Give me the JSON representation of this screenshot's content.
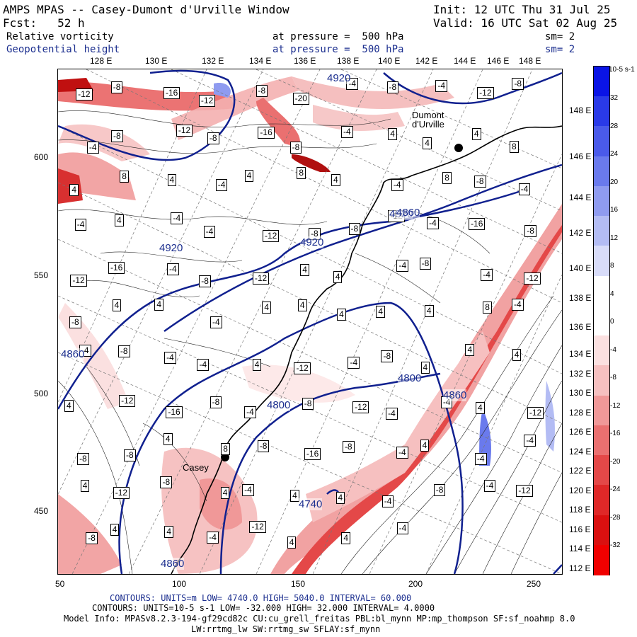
{
  "header": {
    "title_left": "AMPS MPAS -- Casey-Dumont d'Urville Window",
    "init": "Init: 12 UTC Thu 31 Jul 25",
    "fcst": "Fcst:   52 h",
    "valid": "Valid: 16 UTC Sat 02 Aug 25",
    "field1_name": "Relative vorticity",
    "field1_level": "at pressure =  500 hPa",
    "field1_sm": "sm= 2",
    "field2_name": "Geopotential height",
    "field2_level": "at pressure =  500 hPa",
    "field2_sm": "sm= 2"
  },
  "top_lon_labels": [
    "128 E",
    "130 E",
    "132 E",
    "134 E",
    "136 E",
    "138 E",
    "140 E",
    "142 E",
    "144 E",
    "146 E",
    "148 E"
  ],
  "right_lat_labels": [
    "148 E",
    "146 E",
    "144 E",
    "142 E",
    "140 E",
    "138 E",
    "136 E",
    "134 E",
    "132 E",
    "130 E",
    "128 E",
    "126 E",
    "124 E",
    "122 E",
    "120 E",
    "118 E",
    "116 E",
    "114 E",
    "112 E"
  ],
  "y_axis_labels": [
    "600",
    "550",
    "500",
    "450"
  ],
  "x_axis_labels": [
    "50",
    "100",
    "150",
    "200",
    "250"
  ],
  "colorbar": {
    "unit_label": "10-5 s-1",
    "labels": [
      "32",
      "28",
      "24",
      "20",
      "16",
      "12",
      "8",
      "4",
      "0",
      "-4",
      "-8",
      "-12",
      "-16",
      "-20",
      "-24",
      "-28",
      "-32"
    ],
    "colors": [
      "#0a14e6",
      "#2a3ae8",
      "#4a5aea",
      "#6a7aed",
      "#8f9bf0",
      "#b3bcf4",
      "#d8dcf9",
      "#ffffff",
      "#ffffff",
      "#fbe0e0",
      "#f6c0c0",
      "#f09898",
      "#ea7070",
      "#e44848",
      "#df2828",
      "#da1010",
      "#f00000"
    ]
  },
  "map": {
    "station_casey": "Casey",
    "station_durville": "Dumont\nd'Urville",
    "height_labels": [
      "4920",
      "4920",
      "4920",
      "4860",
      "4800",
      "4800",
      "4860",
      "4740",
      "4860",
      "4920",
      "4860"
    ],
    "vort_labels": [
      "-12",
      "-8",
      "-16",
      "-12",
      "-8",
      "-20",
      "-4",
      "-8",
      "-4",
      "-12",
      "-8",
      "-4",
      "-8",
      "-12",
      "-8",
      "-16",
      "-8",
      "-4",
      "4",
      "4",
      "4",
      "8",
      "4",
      "8",
      "4",
      "-4",
      "4",
      "8",
      "4",
      "-4",
      "8",
      "-8",
      "-4",
      "-4",
      "4",
      "-4",
      "-4",
      "-12",
      "-8",
      "-8",
      "-12",
      "-4",
      "-16",
      "-8",
      "-12",
      "-16",
      "-4",
      "-8",
      "-12",
      "4",
      "4",
      "-4",
      "-8",
      "-4",
      "-12",
      "-8",
      "4",
      "4",
      "-4",
      "4",
      "4",
      "4",
      "4",
      "4",
      "8",
      "-4",
      "-4",
      "-8",
      "-4",
      "-4",
      "4",
      "-12",
      "-4",
      "-8",
      "4",
      "4",
      "4",
      "4",
      "-12",
      "-16",
      "-8",
      "-4",
      "-8",
      "-12",
      "-4",
      "-4",
      "4",
      "-12",
      "-8",
      "-8",
      "4",
      "8",
      "-8",
      "-16",
      "-8",
      "-4",
      "4",
      "-4",
      "-4",
      "4",
      "-12",
      "-8",
      "4",
      "-4",
      "4",
      "4",
      "-4",
      "-8",
      "-4",
      "-12",
      "-8",
      "4",
      "4",
      "-4",
      "-12",
      "4",
      "4",
      "-4"
    ]
  },
  "footer": {
    "line1": "CONTOURS:  UNITS=m  LOW=  4740.0        HIGH=  5040.0       INTERVAL=   60.000",
    "line2": "CONTOURS:  UNITS=10-5 s-1   LOW=  -32.000       HIGH=  32.000       INTERVAL=   4.0000",
    "line3": "Model Info: MPASv8.2.3-194-gf29cd82c CU:cu_grell_freitas PBL:bl_mynn MP:mp_thompson SF:sf_noahmp 8.0",
    "line4": "LW:rrtmg_lw SW:rrtmg_sw SFLAY:sf_mynn"
  }
}
